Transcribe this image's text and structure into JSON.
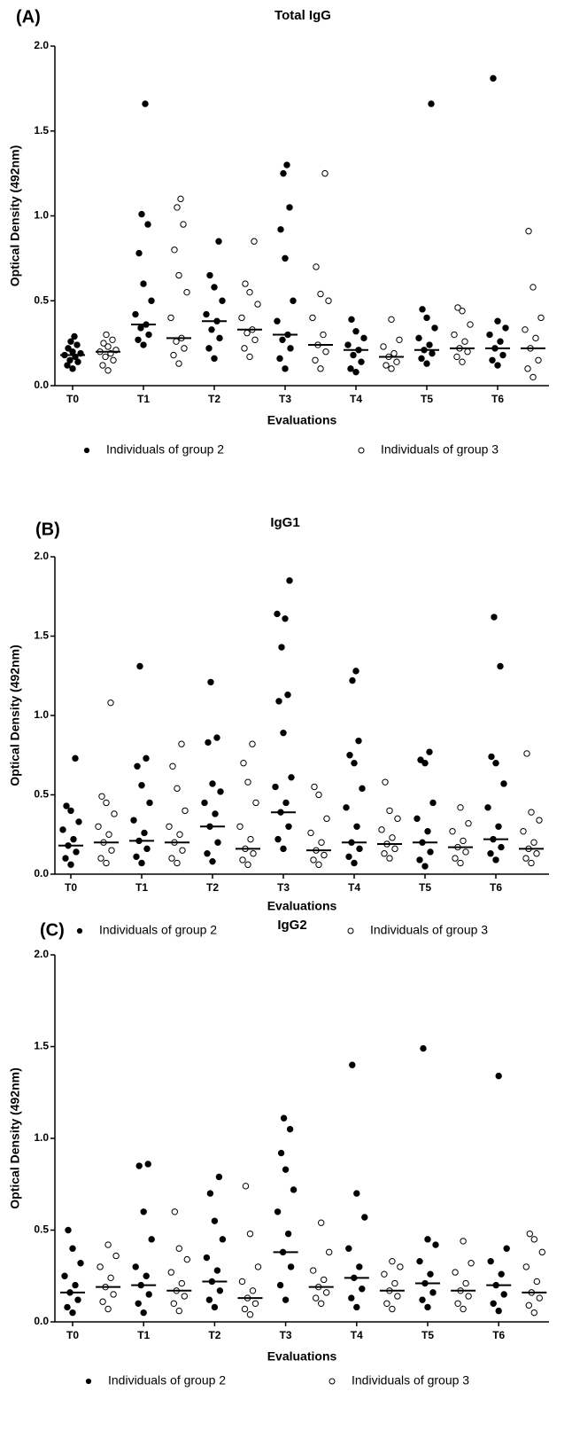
{
  "chart_data": [
    {
      "type": "strip",
      "panel": "(A)",
      "title": "Total IgG",
      "xlabel": "Evaluations",
      "ylabel": "Optical Density (492nm)",
      "categories": [
        "T0",
        null,
        "T1",
        null,
        "T2",
        null,
        "T3",
        null,
        "T4",
        null,
        "T5",
        null,
        "T6",
        null
      ],
      "ylim": [
        0,
        2
      ],
      "yticks": [
        {
          "value": 0,
          "label": "0.0"
        },
        {
          "value": 0.5,
          "label": "0.5"
        },
        {
          "value": 1,
          "label": "1.0"
        },
        {
          "value": 1.5,
          "label": "1.5"
        },
        {
          "value": 2,
          "label": "2.0"
        }
      ],
      "legend": "bottom",
      "series": [
        {
          "name": "Individuals of group 2",
          "color": "#000000",
          "marker": "filled",
          "values": [
            [
              0.1,
              0.12,
              0.14,
              0.15,
              0.17,
              0.18,
              0.19,
              0.2,
              0.22,
              0.24,
              0.26,
              0.29
            ],
            null,
            [
              0.24,
              0.27,
              0.3,
              0.34,
              0.36,
              0.42,
              0.5,
              0.6,
              0.78,
              0.95,
              1.01,
              1.66
            ],
            null,
            [
              0.16,
              0.22,
              0.28,
              0.33,
              0.38,
              0.42,
              0.5,
              0.58,
              0.65,
              0.85
            ],
            null,
            [
              0.1,
              0.16,
              0.22,
              0.27,
              0.3,
              0.38,
              0.5,
              0.75,
              0.92,
              1.05,
              1.25,
              1.3
            ],
            null,
            [
              0.08,
              0.1,
              0.14,
              0.18,
              0.21,
              0.24,
              0.28,
              0.32,
              0.39
            ],
            null,
            [
              0.13,
              0.16,
              0.19,
              0.21,
              0.24,
              0.28,
              0.34,
              0.4,
              0.45,
              1.66
            ],
            null,
            [
              0.12,
              0.15,
              0.18,
              0.22,
              0.26,
              0.3,
              0.34,
              0.38,
              1.81
            ],
            null
          ],
          "medians": [
            0.18,
            null,
            0.36,
            null,
            0.38,
            null,
            0.3,
            null,
            0.21,
            null,
            0.21,
            null,
            0.22,
            null
          ]
        },
        {
          "name": "Individuals of group 3",
          "color": "#000000",
          "marker": "open",
          "values": [
            null,
            [
              0.09,
              0.12,
              0.15,
              0.17,
              0.19,
              0.2,
              0.21,
              0.23,
              0.25,
              0.27,
              0.3
            ],
            null,
            [
              0.13,
              0.18,
              0.22,
              0.26,
              0.28,
              0.4,
              0.55,
              0.65,
              0.8,
              0.95,
              1.05,
              1.1
            ],
            null,
            [
              0.17,
              0.22,
              0.27,
              0.31,
              0.33,
              0.4,
              0.48,
              0.55,
              0.6,
              0.85
            ],
            null,
            [
              0.1,
              0.15,
              0.2,
              0.24,
              0.3,
              0.4,
              0.5,
              0.54,
              0.7,
              1.25
            ],
            null,
            [
              0.1,
              0.12,
              0.14,
              0.17,
              0.19,
              0.23,
              0.27,
              0.39
            ],
            null,
            [
              0.14,
              0.17,
              0.2,
              0.22,
              0.26,
              0.3,
              0.36,
              0.44,
              0.46
            ],
            null,
            [
              0.05,
              0.1,
              0.15,
              0.22,
              0.28,
              0.33,
              0.4,
              0.58,
              0.91
            ]
          ],
          "medians": [
            null,
            0.2,
            null,
            0.28,
            null,
            0.33,
            null,
            0.24,
            null,
            0.17,
            null,
            0.22,
            null,
            0.22
          ]
        }
      ]
    },
    {
      "type": "strip",
      "panel": "(B)",
      "title": "IgG1",
      "xlabel": "Evaluations",
      "ylabel": "Optical Density (492nm)",
      "categories": [
        "T0",
        null,
        "T1",
        null,
        "T2",
        null,
        "T3",
        null,
        "T4",
        null,
        "T5",
        null,
        "T6",
        null
      ],
      "ylim": [
        0,
        2
      ],
      "yticks": [
        {
          "value": 0,
          "label": "0.0"
        },
        {
          "value": 0.5,
          "label": "0.5"
        },
        {
          "value": 1,
          "label": "1.0"
        },
        {
          "value": 1.5,
          "label": "1.5"
        },
        {
          "value": 2,
          "label": "2.0"
        }
      ],
      "legend": "bottom",
      "series": [
        {
          "name": "Individuals of group 2",
          "color": "#000000",
          "marker": "filled",
          "values": [
            [
              0.06,
              0.1,
              0.14,
              0.18,
              0.22,
              0.28,
              0.33,
              0.4,
              0.43,
              0.73
            ],
            null,
            [
              0.07,
              0.11,
              0.16,
              0.21,
              0.26,
              0.34,
              0.45,
              0.56,
              0.68,
              0.73,
              1.31
            ],
            null,
            [
              0.08,
              0.13,
              0.2,
              0.3,
              0.38,
              0.45,
              0.52,
              0.57,
              0.83,
              0.86,
              1.21
            ],
            null,
            [
              0.16,
              0.22,
              0.3,
              0.39,
              0.45,
              0.55,
              0.61,
              0.89,
              1.09,
              1.13,
              1.43,
              1.61,
              1.64,
              1.85
            ],
            null,
            [
              0.07,
              0.11,
              0.16,
              0.2,
              0.3,
              0.42,
              0.54,
              0.7,
              0.75,
              0.84,
              1.22,
              1.28
            ],
            null,
            [
              0.05,
              0.09,
              0.14,
              0.2,
              0.27,
              0.35,
              0.45,
              0.7,
              0.72,
              0.77
            ],
            null,
            [
              0.09,
              0.13,
              0.17,
              0.22,
              0.3,
              0.42,
              0.57,
              0.7,
              0.74,
              1.31,
              1.62
            ],
            null
          ],
          "medians": [
            0.18,
            null,
            0.21,
            null,
            0.3,
            null,
            0.39,
            null,
            0.2,
            null,
            0.2,
            null,
            0.22,
            null
          ]
        },
        {
          "name": "Individuals of group 3",
          "color": "#000000",
          "marker": "open",
          "values": [
            null,
            [
              0.07,
              0.1,
              0.15,
              0.2,
              0.25,
              0.3,
              0.38,
              0.45,
              0.49,
              1.08
            ],
            null,
            [
              0.07,
              0.1,
              0.15,
              0.2,
              0.25,
              0.3,
              0.4,
              0.54,
              0.68,
              0.82
            ],
            null,
            [
              0.06,
              0.09,
              0.13,
              0.16,
              0.22,
              0.3,
              0.45,
              0.58,
              0.7,
              0.82
            ],
            null,
            [
              0.06,
              0.09,
              0.12,
              0.15,
              0.2,
              0.26,
              0.35,
              0.5,
              0.55
            ],
            null,
            [
              0.1,
              0.13,
              0.16,
              0.19,
              0.23,
              0.28,
              0.35,
              0.4,
              0.58
            ],
            null,
            [
              0.07,
              0.1,
              0.14,
              0.17,
              0.21,
              0.27,
              0.32,
              0.42
            ],
            null,
            [
              0.07,
              0.1,
              0.13,
              0.16,
              0.2,
              0.27,
              0.34,
              0.39,
              0.76
            ]
          ],
          "medians": [
            null,
            0.2,
            null,
            0.2,
            null,
            0.16,
            null,
            0.15,
            null,
            0.19,
            null,
            0.17,
            null,
            0.16
          ]
        }
      ]
    },
    {
      "type": "strip",
      "panel": "(C)",
      "title": "IgG2",
      "xlabel": "Evaluations",
      "ylabel": "Optical Density (492nm)",
      "categories": [
        "T0",
        null,
        "T1",
        null,
        "T2",
        null,
        "T3",
        null,
        "T4",
        null,
        "T5",
        null,
        "T6",
        null
      ],
      "ylim": [
        0,
        2
      ],
      "yticks": [
        {
          "value": 0,
          "label": "0.0"
        },
        {
          "value": 0.5,
          "label": "0.5"
        },
        {
          "value": 1,
          "label": "1.0"
        },
        {
          "value": 1.5,
          "label": "1.5"
        },
        {
          "value": 2,
          "label": "2.0"
        }
      ],
      "legend": "bottom",
      "series": [
        {
          "name": "Individuals of group 2",
          "color": "#000000",
          "marker": "filled",
          "values": [
            [
              0.05,
              0.08,
              0.12,
              0.16,
              0.2,
              0.25,
              0.32,
              0.4,
              0.5
            ],
            null,
            [
              0.05,
              0.1,
              0.15,
              0.2,
              0.25,
              0.3,
              0.45,
              0.6,
              0.85,
              0.86
            ],
            null,
            [
              0.08,
              0.12,
              0.17,
              0.22,
              0.28,
              0.35,
              0.45,
              0.55,
              0.7,
              0.79
            ],
            null,
            [
              0.12,
              0.2,
              0.3,
              0.38,
              0.48,
              0.6,
              0.72,
              0.83,
              0.92,
              1.05,
              1.11
            ],
            null,
            [
              0.08,
              0.13,
              0.18,
              0.24,
              0.3,
              0.4,
              0.57,
              0.7,
              1.4
            ],
            null,
            [
              0.08,
              0.12,
              0.16,
              0.21,
              0.26,
              0.33,
              0.42,
              0.45,
              1.49
            ],
            null,
            [
              0.06,
              0.1,
              0.15,
              0.2,
              0.26,
              0.33,
              0.4,
              1.34
            ],
            null
          ],
          "medians": [
            0.16,
            null,
            0.2,
            null,
            0.22,
            null,
            0.38,
            null,
            0.24,
            null,
            0.21,
            null,
            0.2,
            null
          ]
        },
        {
          "name": "Individuals of group 3",
          "color": "#000000",
          "marker": "open",
          "values": [
            null,
            [
              0.07,
              0.11,
              0.15,
              0.19,
              0.24,
              0.3,
              0.36,
              0.42
            ],
            null,
            [
              0.06,
              0.1,
              0.14,
              0.17,
              0.21,
              0.27,
              0.34,
              0.4,
              0.6
            ],
            null,
            [
              0.04,
              0.07,
              0.1,
              0.13,
              0.17,
              0.22,
              0.3,
              0.48,
              0.74
            ],
            null,
            [
              0.1,
              0.13,
              0.16,
              0.19,
              0.23,
              0.28,
              0.38,
              0.54
            ],
            null,
            [
              0.07,
              0.1,
              0.14,
              0.17,
              0.21,
              0.26,
              0.3,
              0.33
            ],
            null,
            [
              0.07,
              0.1,
              0.14,
              0.17,
              0.21,
              0.27,
              0.32,
              0.44
            ],
            null,
            [
              0.05,
              0.09,
              0.13,
              0.16,
              0.22,
              0.3,
              0.38,
              0.45,
              0.48
            ]
          ],
          "medians": [
            null,
            0.19,
            null,
            0.17,
            null,
            0.13,
            null,
            0.19,
            null,
            0.17,
            null,
            0.17,
            null,
            0.16
          ]
        }
      ]
    }
  ]
}
